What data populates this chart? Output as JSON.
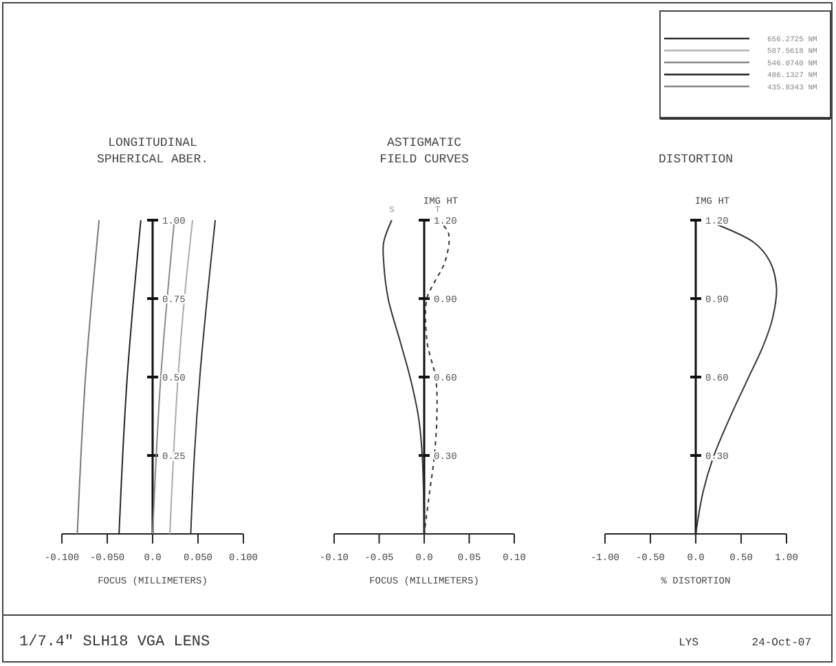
{
  "chart_data": [
    {
      "type": "line",
      "title": "LONGITUDINAL\nSPHERICAL ABER.",
      "xlabel": "FOCUS (MILLIMETERS)",
      "xlim": [
        -0.1,
        0.1
      ],
      "xticks": [
        {
          "value": -0.1,
          "label": "-0.100"
        },
        {
          "value": -0.05,
          "label": "-0.050"
        },
        {
          "value": 0,
          "label": "0.0"
        },
        {
          "value": 0.05,
          "label": "0.050"
        },
        {
          "value": 0.1,
          "label": "0.100"
        }
      ],
      "ylim": [
        0,
        1
      ],
      "yticks": [
        {
          "value": 0.25,
          "label": "0.25"
        },
        {
          "value": 0.5,
          "label": "0.50"
        },
        {
          "value": 0.75,
          "label": "0.75"
        },
        {
          "value": 1,
          "label": "1.00"
        }
      ],
      "legend": "top right",
      "annotations": [
        "1/7.4\" SLH18 VGA LENS",
        "LYS",
        "24-Oct-07"
      ],
      "series": [
        {
          "name": "656.2725 NM",
          "color": "#333333",
          "x": [
            0.042,
            0.046,
            0.052,
            0.06,
            0.069
          ],
          "values": [
            0,
            0.25,
            0.5,
            0.75,
            1
          ]
        },
        {
          "name": "587.5618 NM",
          "color": "#aaaaaa",
          "x": [
            0.019,
            0.023,
            0.028,
            0.035,
            0.044
          ],
          "values": [
            0,
            0.25,
            0.5,
            0.75,
            1
          ]
        },
        {
          "name": "546.0740 NM",
          "color": "#888888",
          "x": [
            0,
            0.004,
            0.009,
            0.016,
            0.024
          ],
          "values": [
            0,
            0.25,
            0.5,
            0.75,
            1
          ]
        },
        {
          "name": "486.1327 NM",
          "color": "#222222",
          "x": [
            -0.037,
            -0.033,
            -0.028,
            -0.021,
            -0.013
          ],
          "values": [
            0,
            0.25,
            0.5,
            0.75,
            1
          ]
        },
        {
          "name": "435.8343 NM",
          "color": "#777777",
          "x": [
            -0.083,
            -0.079,
            -0.074,
            -0.067,
            -0.059
          ],
          "values": [
            0,
            0.25,
            0.5,
            0.75,
            1
          ]
        }
      ]
    },
    {
      "type": "line",
      "title": "ASTIGMATIC\nFIELD CURVES",
      "xlabel": "FOCUS (MILLIMETERS)",
      "ylabel": "IMG HT",
      "xlim": [
        -0.1,
        0.1
      ],
      "xticks": [
        {
          "value": -0.1,
          "label": "-0.10"
        },
        {
          "value": -0.05,
          "label": "-0.05"
        },
        {
          "value": 0,
          "label": "0.0"
        },
        {
          "value": 0.05,
          "label": "0.05"
        },
        {
          "value": 0.1,
          "label": "0.10"
        }
      ],
      "ylim": [
        0,
        1.2
      ],
      "yticks": [
        {
          "value": 0.3,
          "label": "0.30"
        },
        {
          "value": 0.6,
          "label": "0.60"
        },
        {
          "value": 0.9,
          "label": "0.90"
        },
        {
          "value": 1.2,
          "label": "1.20"
        }
      ],
      "series": [
        {
          "name": "S",
          "color": "#333333",
          "line_style": "solid",
          "x": [
            -0.036,
            -0.045,
            -0.045,
            -0.04,
            -0.027,
            -0.015,
            -0.006,
            -0.002,
            0
          ],
          "values": [
            1.2,
            1.115,
            1.04,
            0.9,
            0.74,
            0.59,
            0.44,
            0.29,
            0
          ]
        },
        {
          "name": "T",
          "color": "#333333",
          "line_style": "dashed",
          "x": [
            0.015,
            0.027,
            0.023,
            0.011,
            0.003,
            0.003,
            0.013,
            0.014,
            0.011,
            0.006,
            0
          ],
          "values": [
            1.2,
            1.15,
            1.04,
            0.96,
            0.9,
            0.74,
            0.59,
            0.44,
            0.29,
            0.16,
            0
          ]
        }
      ]
    },
    {
      "type": "line",
      "title": "DISTORTION",
      "xlabel": "% DISTORTION",
      "ylabel": "IMG HT",
      "xlim": [
        -1,
        1
      ],
      "xticks": [
        {
          "value": -1,
          "label": "-1.00"
        },
        {
          "value": -0.5,
          "label": "-0.50"
        },
        {
          "value": 0,
          "label": "0.0"
        },
        {
          "value": 0.5,
          "label": "0.50"
        },
        {
          "value": 1,
          "label": "1.00"
        }
      ],
      "ylim": [
        0,
        1.2
      ],
      "yticks": [
        {
          "value": 0.3,
          "label": "0.30"
        },
        {
          "value": 0.6,
          "label": "0.60"
        },
        {
          "value": 0.9,
          "label": "0.90"
        },
        {
          "value": 1.2,
          "label": "1.20"
        }
      ],
      "series": [
        {
          "color": "#333333",
          "x": [
            0.11,
            0.64,
            0.82,
            0.89,
            0.85,
            0.75,
            0.57,
            0.37,
            0.19,
            0.08,
            0
          ],
          "values": [
            1.2,
            1.115,
            1.04,
            0.94,
            0.83,
            0.725,
            0.59,
            0.44,
            0.29,
            0.16,
            0
          ]
        }
      ]
    }
  ]
}
